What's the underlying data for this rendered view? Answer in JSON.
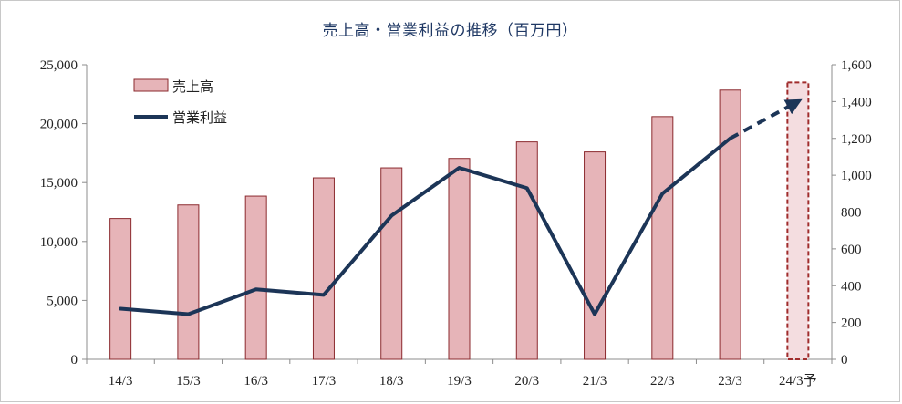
{
  "chart_data": {
    "type": "bar",
    "title": "売上高・営業利益の推移（百万円）",
    "categories": [
      "14/3",
      "15/3",
      "16/3",
      "17/3",
      "18/3",
      "19/3",
      "20/3",
      "21/3",
      "22/3",
      "23/3",
      "24/3予"
    ],
    "series": [
      {
        "name": "売上高",
        "type": "bar",
        "axis": "left",
        "values": [
          11950,
          13100,
          13850,
          15400,
          16250,
          17050,
          18450,
          17600,
          20600,
          22850,
          23500
        ],
        "forecast_from_index": 10,
        "color": "#e6b4b8",
        "edge_color": "#8b2a2e"
      },
      {
        "name": "営業利益",
        "type": "line",
        "axis": "right",
        "values": [
          275,
          245,
          380,
          350,
          780,
          1040,
          930,
          245,
          900,
          1200,
          1400
        ],
        "forecast_from_index": 9,
        "color": "#1c3557"
      }
    ],
    "y_left": {
      "ylim": [
        0,
        25000
      ],
      "ticks": [
        0,
        5000,
        10000,
        15000,
        20000,
        25000
      ],
      "tick_labels": [
        "0",
        "5,000",
        "10,000",
        "15,000",
        "20,000",
        "25,000"
      ]
    },
    "y_right": {
      "ylim": [
        0,
        1600
      ],
      "ticks": [
        0,
        200,
        400,
        600,
        800,
        1000,
        1200,
        1400,
        1600
      ],
      "tick_labels": [
        "0",
        "200",
        "400",
        "600",
        "800",
        "1,000",
        "1,200",
        "1,400",
        "1,600"
      ]
    },
    "legend": {
      "placement": "top-left",
      "items": [
        "売上高",
        "営業利益"
      ]
    },
    "grid": false,
    "colors": {
      "forecast_bar_fill": "#f4dde0",
      "forecast_bar_edge": "#a02c2c",
      "axis": "#8c8c8c",
      "title": "#1f3864"
    }
  }
}
